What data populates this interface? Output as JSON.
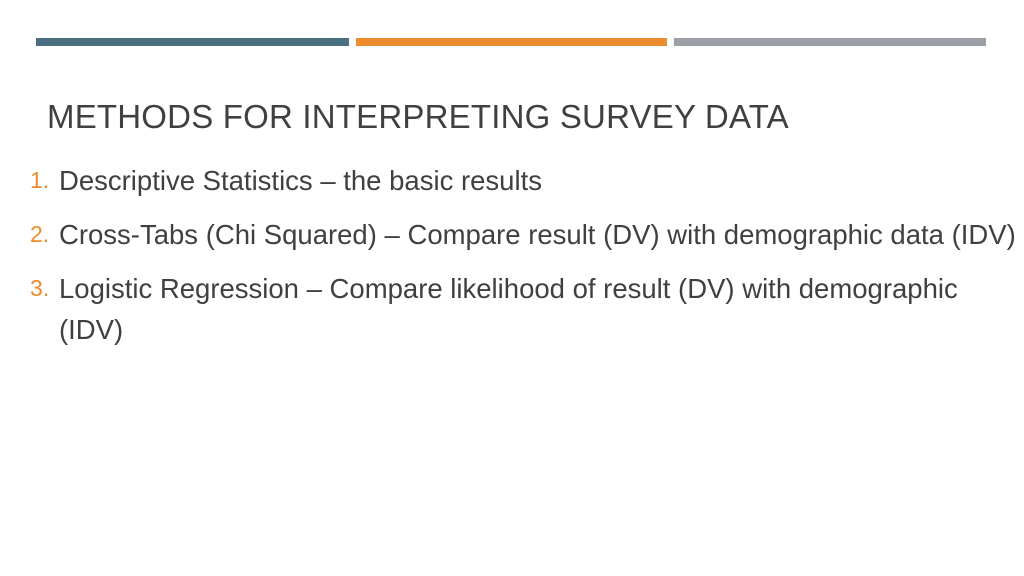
{
  "colors": {
    "bar_1": "#4a6f80",
    "bar_2": "#ed8b2f",
    "bar_3": "#9aa0a6",
    "text": "#404040",
    "number": "#ed8b2f"
  },
  "slide": {
    "title": "METHODS FOR INTERPRETING SURVEY DATA",
    "items": [
      {
        "number": "1.",
        "text": "Descriptive Statistics – the basic results"
      },
      {
        "number": "2.",
        "text": "Cross-Tabs (Chi Squared) –  Compare result (DV) with demographic data (IDV)"
      },
      {
        "number": "3.",
        "text": "Logistic Regression – Compare likelihood of result (DV) with demographic (IDV)"
      }
    ]
  }
}
